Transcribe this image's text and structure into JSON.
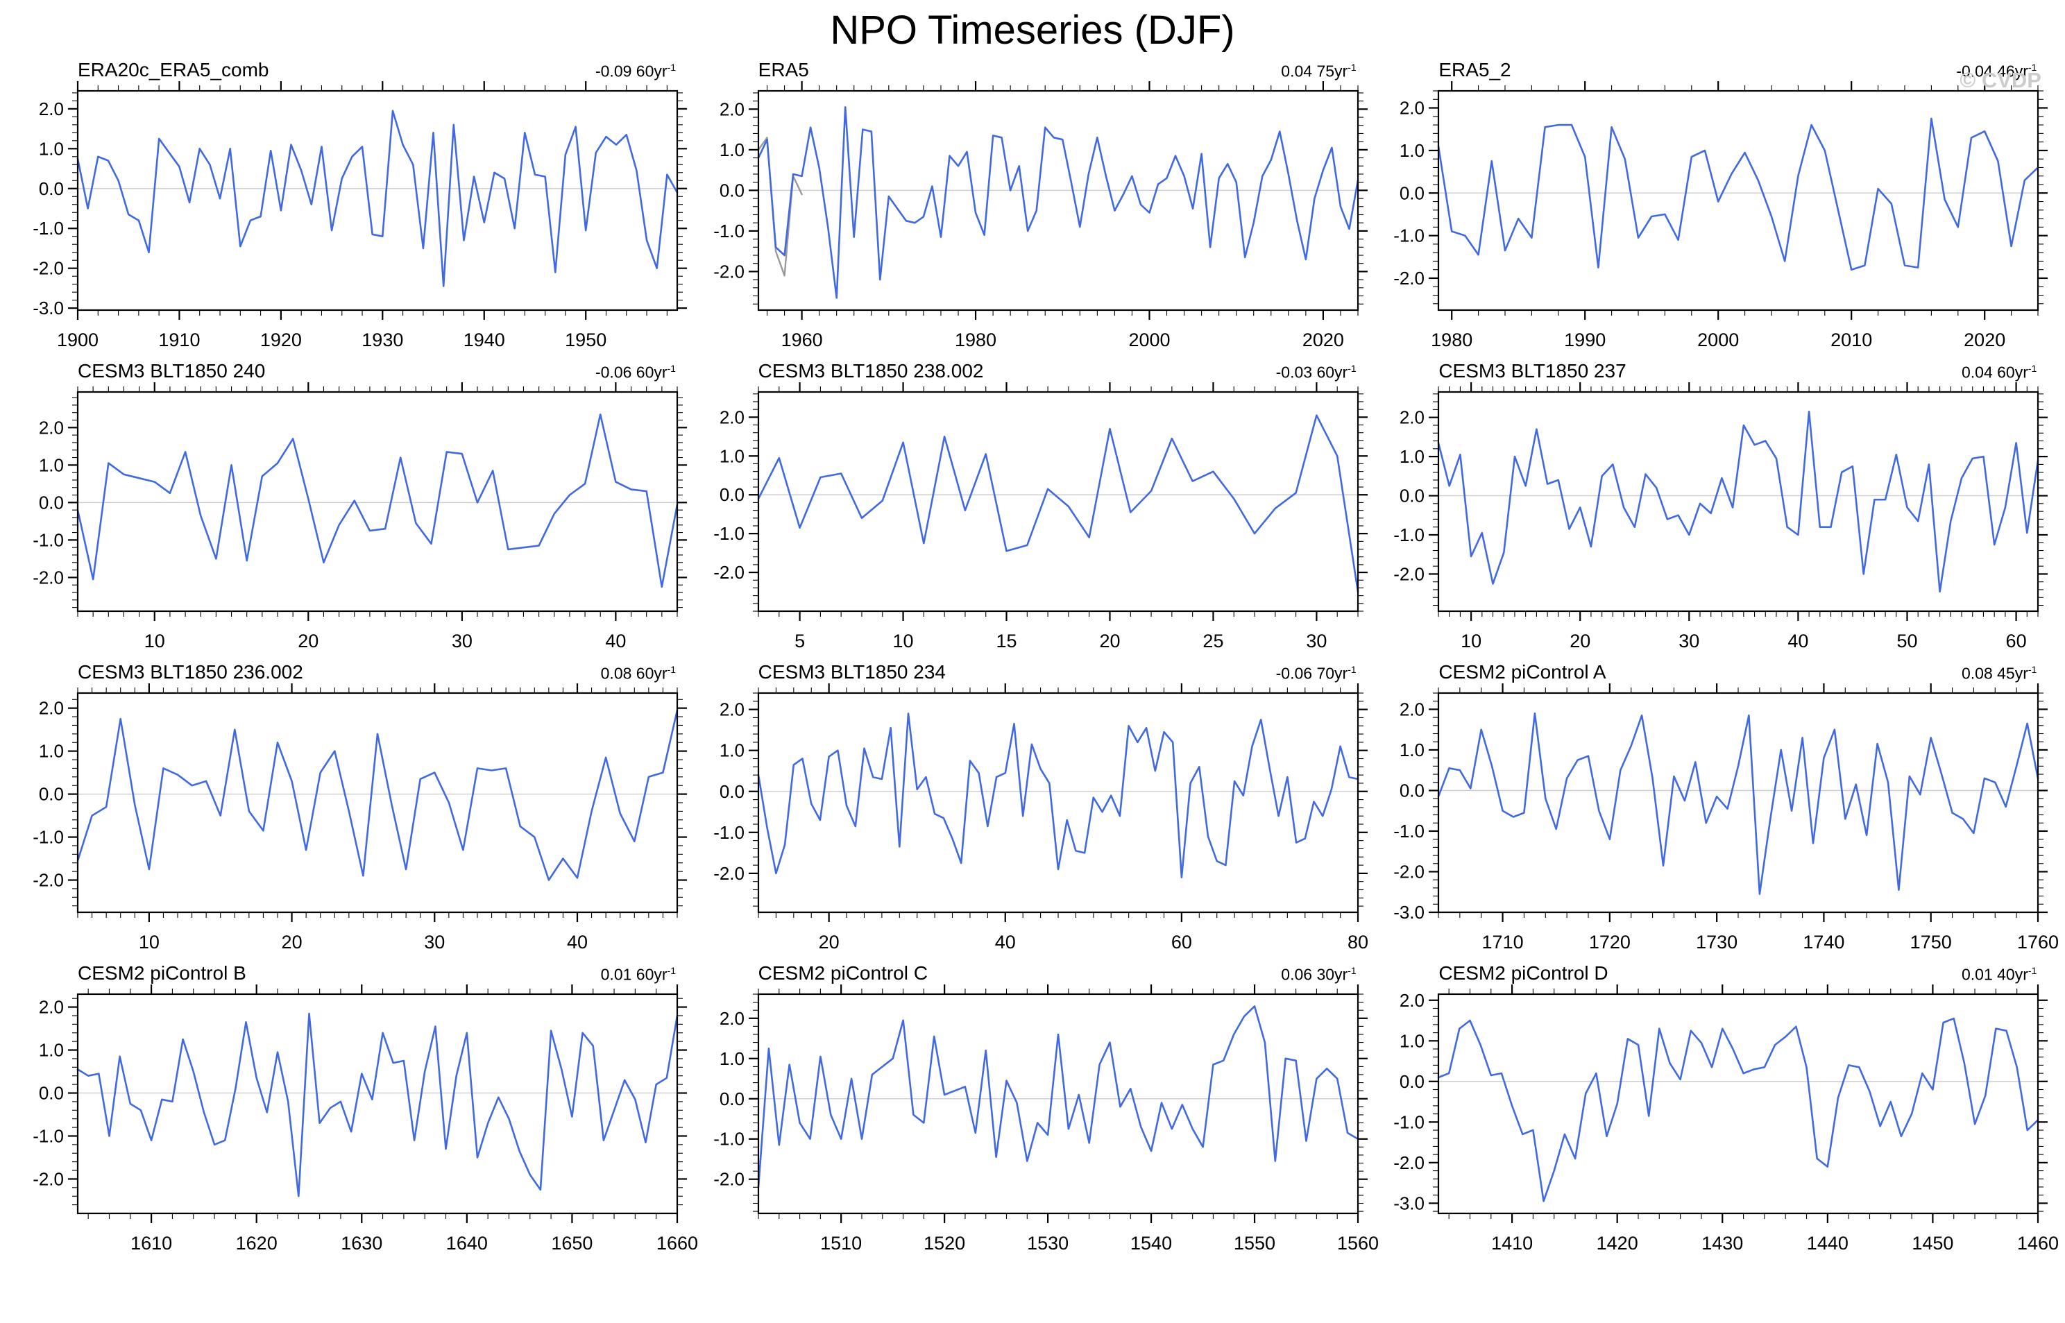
{
  "page": {
    "title": "NPO Timeseries (DJF)",
    "watermark": "© CVDP"
  },
  "colors": {
    "line": "#4169E1",
    "secondary_line": "#9a9a9a",
    "zero_line": "#c9c9c9",
    "frame": "#000000",
    "watermark": "#cccccc"
  },
  "chart_data": [
    {
      "type": "line",
      "title": "ERA20c_ERA5_comb",
      "trend": "-0.09 60yr",
      "trend_exp": "-1",
      "xlabel": "",
      "ylabel": "",
      "x_start": 1900,
      "xlim": [
        1900,
        1959
      ],
      "xticks": [
        1900,
        1910,
        1920,
        1930,
        1940,
        1950
      ],
      "x_minor_step": 2,
      "ylim": [
        -3.05,
        2.45
      ],
      "yticks": [
        2,
        1,
        0,
        -1,
        -2,
        -3
      ],
      "values": [
        0.75,
        -0.5,
        0.8,
        0.7,
        0.2,
        -0.65,
        -0.8,
        -1.6,
        1.25,
        0.9,
        0.55,
        -0.35,
        1.0,
        0.6,
        -0.25,
        1.0,
        -1.45,
        -0.8,
        -0.7,
        0.95,
        -0.55,
        1.1,
        0.45,
        -0.4,
        1.05,
        -1.05,
        0.25,
        0.8,
        1.05,
        -1.15,
        -1.2,
        1.95,
        1.1,
        0.6,
        -1.5,
        1.4,
        -2.45,
        1.6,
        -1.3,
        0.3,
        -0.85,
        0.4,
        0.25,
        -1.0,
        1.4,
        0.35,
        0.3,
        -2.1,
        0.85,
        1.55,
        -1.05,
        0.9,
        1.3,
        1.1,
        1.35,
        0.45,
        -1.3,
        -2.0,
        0.35,
        -0.1
      ]
    },
    {
      "type": "line",
      "title": "ERA5",
      "trend": "0.04 75yr",
      "trend_exp": "-1",
      "xlabel": "",
      "ylabel": "",
      "x_start": 1955,
      "xlim": [
        1955,
        2024
      ],
      "xticks": [
        1960,
        1980,
        2000,
        2020
      ],
      "x_minor_step": 2,
      "ylim": [
        -2.95,
        2.45
      ],
      "yticks": [
        2,
        1,
        0,
        -1,
        -2
      ],
      "values": [
        0.8,
        1.25,
        -1.4,
        -1.6,
        0.4,
        0.35,
        1.55,
        0.55,
        -0.9,
        -2.65,
        2.05,
        -1.15,
        1.5,
        1.45,
        -2.2,
        -0.15,
        -0.45,
        -0.75,
        -0.8,
        -0.65,
        0.1,
        -1.15,
        0.85,
        0.6,
        0.95,
        -0.55,
        -1.1,
        1.35,
        1.3,
        0.0,
        0.6,
        -1.0,
        -0.5,
        1.55,
        1.3,
        1.25,
        0.2,
        -0.9,
        0.4,
        1.3,
        0.35,
        -0.5,
        -0.1,
        0.35,
        -0.35,
        -0.55,
        0.15,
        0.3,
        0.85,
        0.35,
        -0.45,
        0.9,
        -1.4,
        0.3,
        0.65,
        0.2,
        -1.65,
        -0.8,
        0.35,
        0.75,
        1.45,
        0.4,
        -0.75,
        -1.7,
        -0.2,
        0.5,
        1.05,
        -0.4,
        -0.95,
        0.25
      ],
      "secondary_series": {
        "x_start": 1955,
        "values": [
          1.0,
          1.3,
          -1.5,
          -2.1,
          0.35,
          -0.1
        ]
      }
    },
    {
      "type": "line",
      "title": "ERA5_2",
      "trend": "-0.04 46yr",
      "trend_exp": "-1",
      "xlabel": "",
      "ylabel": "",
      "x_start": 1979,
      "xlim": [
        1979,
        2024
      ],
      "xticks": [
        1980,
        1990,
        2000,
        2010,
        2020
      ],
      "x_minor_step": 2,
      "ylim": [
        -2.75,
        2.4
      ],
      "yticks": [
        2,
        1,
        0,
        -1,
        -2
      ],
      "values": [
        1.1,
        -0.9,
        -1.0,
        -1.45,
        0.75,
        -1.35,
        -0.6,
        -1.05,
        1.55,
        1.6,
        1.6,
        0.85,
        -1.75,
        1.55,
        0.8,
        -1.05,
        -0.55,
        -0.5,
        -1.1,
        0.85,
        1.0,
        -0.2,
        0.45,
        0.95,
        0.3,
        -0.55,
        -1.6,
        0.4,
        1.6,
        1.0,
        -0.4,
        -1.8,
        -1.7,
        0.1,
        -0.25,
        -1.7,
        -1.75,
        1.75,
        -0.15,
        -0.8,
        1.3,
        1.45,
        0.75,
        -1.25,
        0.3,
        0.6
      ]
    },
    {
      "type": "line",
      "title": "CESM3 BLT1850 240",
      "trend": "-0.06 60yr",
      "trend_exp": "-1",
      "xlabel": "",
      "ylabel": "",
      "x_start": 5,
      "xlim": [
        5,
        44
      ],
      "xticks": [
        10,
        20,
        30,
        40
      ],
      "x_minor_step": 1,
      "ylim": [
        -2.9,
        2.95
      ],
      "yticks": [
        2,
        1,
        0,
        -1,
        -2
      ],
      "values": [
        -0.2,
        -2.05,
        1.05,
        0.75,
        0.65,
        0.55,
        0.25,
        1.35,
        -0.35,
        -1.5,
        1.0,
        -1.55,
        0.7,
        1.05,
        1.7,
        0.1,
        -1.6,
        -0.6,
        0.05,
        -0.75,
        -0.7,
        1.2,
        -0.55,
        -1.1,
        1.35,
        1.3,
        0.0,
        0.85,
        -1.25,
        -1.2,
        -1.15,
        -0.3,
        0.2,
        0.5,
        2.35,
        0.55,
        0.35,
        0.3,
        -2.25,
        -0.05
      ]
    },
    {
      "type": "line",
      "title": "CESM3 BLT1850 238.002",
      "trend": "-0.03 60yr",
      "trend_exp": "-1",
      "xlabel": "",
      "ylabel": "",
      "x_start": 3,
      "xlim": [
        3,
        32
      ],
      "xticks": [
        5,
        10,
        15,
        20,
        25,
        30
      ],
      "x_minor_step": 1,
      "ylim": [
        -3.0,
        2.65
      ],
      "yticks": [
        2,
        1,
        0,
        -1,
        -2
      ],
      "values": [
        -0.1,
        0.95,
        -0.85,
        0.45,
        0.55,
        -0.6,
        -0.15,
        1.35,
        -1.25,
        1.5,
        -0.4,
        1.05,
        -1.45,
        -1.3,
        0.15,
        -0.3,
        -1.1,
        1.7,
        -0.45,
        0.1,
        1.45,
        0.35,
        0.6,
        -0.1,
        -1.0,
        -0.35,
        0.05,
        2.05,
        1.0,
        -2.5
      ]
    },
    {
      "type": "line",
      "title": "CESM3 BLT1850 237",
      "trend": "0.04 60yr",
      "trend_exp": "-1",
      "xlabel": "",
      "ylabel": "",
      "x_start": 7,
      "xlim": [
        7,
        62
      ],
      "xticks": [
        10,
        20,
        30,
        40,
        50,
        60
      ],
      "x_minor_step": 1,
      "ylim": [
        -2.95,
        2.65
      ],
      "yticks": [
        2,
        1,
        0,
        -1,
        -2
      ],
      "values": [
        1.35,
        0.25,
        1.05,
        -1.55,
        -0.95,
        -2.25,
        -1.45,
        1.0,
        0.25,
        1.7,
        0.3,
        0.4,
        -0.85,
        -0.3,
        -1.3,
        0.5,
        0.8,
        -0.3,
        -0.8,
        0.55,
        0.2,
        -0.6,
        -0.5,
        -1.0,
        -0.2,
        -0.45,
        0.45,
        -0.3,
        1.8,
        1.3,
        1.4,
        0.95,
        -0.8,
        -1.0,
        2.15,
        -0.8,
        -0.8,
        0.6,
        0.75,
        -2.0,
        -0.1,
        -0.1,
        1.05,
        -0.3,
        -0.65,
        0.8,
        -2.45,
        -0.65,
        0.45,
        0.95,
        1.0,
        -1.25,
        -0.3,
        1.35,
        -0.95,
        0.9
      ]
    },
    {
      "type": "line",
      "title": "CESM3 BLT1850 236.002",
      "trend": "0.08 60yr",
      "trend_exp": "-1",
      "xlabel": "",
      "ylabel": "",
      "x_start": 5,
      "xlim": [
        5,
        47
      ],
      "xticks": [
        10,
        20,
        30,
        40
      ],
      "x_minor_step": 1,
      "ylim": [
        -2.75,
        2.35
      ],
      "yticks": [
        2,
        1,
        0,
        -1,
        -2
      ],
      "values": [
        -1.55,
        -0.5,
        -0.3,
        1.75,
        -0.25,
        -1.75,
        0.6,
        0.45,
        0.2,
        0.3,
        -0.5,
        1.5,
        -0.4,
        -0.85,
        1.2,
        0.3,
        -1.3,
        0.5,
        1.0,
        -0.4,
        -1.9,
        1.4,
        -0.25,
        -1.75,
        0.35,
        0.5,
        -0.2,
        -1.3,
        0.6,
        0.55,
        0.6,
        -0.75,
        -1.0,
        -2.0,
        -1.5,
        -1.95,
        -0.4,
        0.85,
        -0.45,
        -1.1,
        0.4,
        0.5,
        1.95
      ]
    },
    {
      "type": "line",
      "title": "CESM3 BLT1850 234",
      "trend": "-0.06 70yr",
      "trend_exp": "-1",
      "xlabel": "",
      "ylabel": "",
      "x_start": 12,
      "xlim": [
        12,
        80
      ],
      "xticks": [
        20,
        40,
        60,
        80
      ],
      "x_minor_step": 2,
      "ylim": [
        -2.95,
        2.4
      ],
      "yticks": [
        2,
        1,
        0,
        -1,
        -2
      ],
      "values": [
        0.4,
        -0.9,
        -2.0,
        -1.3,
        0.65,
        0.8,
        -0.3,
        -0.7,
        0.85,
        1.0,
        -0.35,
        -0.85,
        1.05,
        0.35,
        0.3,
        1.55,
        -1.35,
        1.9,
        0.05,
        0.35,
        -0.55,
        -0.65,
        -1.15,
        -1.75,
        0.75,
        0.45,
        -0.85,
        0.35,
        0.45,
        1.65,
        -0.6,
        1.15,
        0.55,
        0.2,
        -1.9,
        -0.7,
        -1.45,
        -1.5,
        -0.15,
        -0.5,
        -0.1,
        -0.6,
        1.6,
        1.2,
        1.55,
        0.5,
        1.45,
        1.2,
        -2.1,
        0.2,
        0.6,
        -1.1,
        -1.7,
        -1.8,
        0.25,
        -0.1,
        1.1,
        1.75,
        0.55,
        -0.6,
        0.35,
        -1.25,
        -1.15,
        -0.25,
        -0.6,
        0.05,
        1.1,
        0.35,
        0.3
      ]
    },
    {
      "type": "line",
      "title": "CESM2 piControl A",
      "trend": "0.08 45yr",
      "trend_exp": "-1",
      "xlabel": "",
      "ylabel": "",
      "x_start": 1704,
      "xlim": [
        1704,
        1760
      ],
      "xticks": [
        1710,
        1720,
        1730,
        1740,
        1750,
        1760
      ],
      "x_minor_step": 2,
      "ylim": [
        -3.0,
        2.4
      ],
      "yticks": [
        2,
        1,
        0,
        -1,
        -2,
        -3
      ],
      "values": [
        -0.15,
        0.55,
        0.5,
        0.05,
        1.5,
        0.6,
        -0.5,
        -0.65,
        -0.55,
        1.9,
        -0.2,
        -0.95,
        0.3,
        0.75,
        0.85,
        -0.5,
        -1.2,
        0.5,
        1.1,
        1.85,
        0.3,
        -1.85,
        0.35,
        -0.25,
        0.7,
        -0.8,
        -0.15,
        -0.45,
        0.6,
        1.85,
        -2.55,
        -0.7,
        1.0,
        -0.5,
        1.3,
        -1.3,
        0.8,
        1.5,
        -0.7,
        0.15,
        -1.1,
        1.15,
        0.2,
        -2.45,
        0.35,
        -0.1,
        1.3,
        0.4,
        -0.55,
        -0.7,
        -1.05,
        0.3,
        0.2,
        -0.4,
        0.6,
        1.65,
        0.3
      ]
    },
    {
      "type": "line",
      "title": "CESM2 piControl B",
      "trend": "0.01 60yr",
      "trend_exp": "-1",
      "xlabel": "",
      "ylabel": "",
      "x_start": 1603,
      "xlim": [
        1603,
        1660
      ],
      "xticks": [
        1610,
        1620,
        1630,
        1640,
        1650,
        1660
      ],
      "x_minor_step": 2,
      "ylim": [
        -2.8,
        2.3
      ],
      "yticks": [
        2,
        1,
        0,
        -1,
        -2
      ],
      "values": [
        0.55,
        0.4,
        0.45,
        -1.0,
        0.85,
        -0.25,
        -0.4,
        -1.1,
        -0.15,
        -0.2,
        1.25,
        0.5,
        -0.45,
        -1.2,
        -1.1,
        0.1,
        1.65,
        0.35,
        -0.45,
        0.95,
        -0.2,
        -2.4,
        1.85,
        -0.7,
        -0.35,
        -0.2,
        -0.9,
        0.45,
        -0.15,
        1.4,
        0.7,
        0.75,
        -1.1,
        0.5,
        1.55,
        -1.3,
        0.4,
        1.4,
        -1.5,
        -0.7,
        -0.1,
        -0.6,
        -1.35,
        -1.9,
        -2.25,
        1.45,
        0.55,
        -0.55,
        1.4,
        1.1,
        -1.1,
        -0.4,
        0.3,
        -0.15,
        -1.15,
        0.2,
        0.35,
        1.8
      ]
    },
    {
      "type": "line",
      "title": "CESM2 piControl C",
      "trend": "0.06 30yr",
      "trend_exp": "-1",
      "xlabel": "",
      "ylabel": "",
      "x_start": 1502,
      "xlim": [
        1502,
        1560
      ],
      "xticks": [
        1510,
        1520,
        1530,
        1540,
        1550,
        1560
      ],
      "x_minor_step": 2,
      "ylim": [
        -2.85,
        2.6
      ],
      "yticks": [
        2,
        1,
        0,
        -1,
        -2
      ],
      "values": [
        -2.2,
        1.25,
        -1.15,
        0.85,
        -0.6,
        -1.0,
        1.05,
        -0.4,
        -1.0,
        0.5,
        -1.0,
        0.6,
        0.8,
        1.0,
        1.95,
        -0.4,
        -0.6,
        1.55,
        0.1,
        0.2,
        0.3,
        -0.85,
        1.2,
        -1.45,
        0.45,
        -0.1,
        -1.55,
        -0.6,
        -0.9,
        1.6,
        -0.75,
        0.1,
        -1.1,
        0.85,
        1.4,
        -0.2,
        0.25,
        -0.7,
        -1.3,
        -0.1,
        -0.75,
        -0.15,
        -0.75,
        -1.2,
        0.85,
        0.95,
        1.6,
        2.05,
        2.3,
        1.4,
        -1.55,
        1.0,
        0.95,
        -1.05,
        0.5,
        0.75,
        0.5,
        -0.85,
        -1.0
      ]
    },
    {
      "type": "line",
      "title": "CESM2 piControl D",
      "trend": "0.01 40yr",
      "trend_exp": "-1",
      "xlabel": "",
      "ylabel": "",
      "x_start": 1403,
      "xlim": [
        1403,
        1460
      ],
      "xticks": [
        1410,
        1420,
        1430,
        1440,
        1450,
        1460
      ],
      "x_minor_step": 2,
      "ylim": [
        -3.25,
        2.15
      ],
      "yticks": [
        2,
        1,
        0,
        -1,
        -2,
        -3
      ],
      "values": [
        0.1,
        0.2,
        1.3,
        1.5,
        0.9,
        0.15,
        0.2,
        -0.6,
        -1.3,
        -1.2,
        -2.95,
        -2.2,
        -1.3,
        -1.9,
        -0.3,
        0.2,
        -1.35,
        -0.55,
        1.05,
        0.9,
        -0.85,
        1.3,
        0.45,
        0.05,
        1.25,
        0.95,
        0.35,
        1.3,
        0.8,
        0.2,
        0.3,
        0.35,
        0.9,
        1.1,
        1.35,
        0.35,
        -1.9,
        -2.1,
        -0.4,
        0.4,
        0.35,
        -0.25,
        -1.1,
        -0.5,
        -1.35,
        -0.8,
        0.2,
        -0.2,
        1.45,
        1.55,
        0.45,
        -1.05,
        -0.35,
        1.3,
        1.25,
        0.35,
        -1.2,
        -0.95
      ]
    }
  ]
}
